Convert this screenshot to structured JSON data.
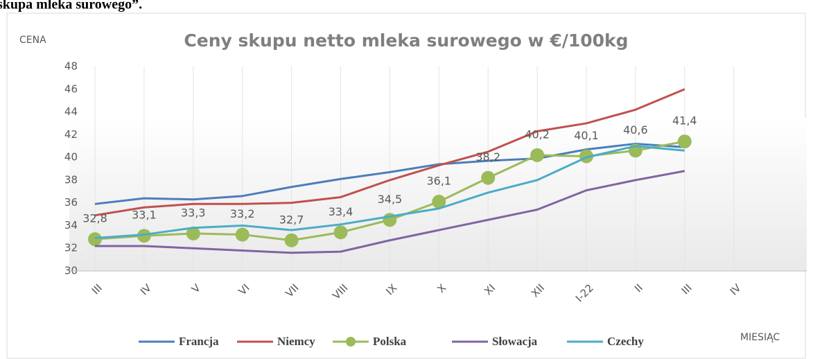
{
  "header": "skupa mleka surowego”.",
  "chart_data": {
    "type": "line",
    "title": "Ceny skupu netto mleka surowego  w €/100kg",
    "y_label": "CENA",
    "x_label": "MIESIĄC",
    "categories": [
      "III",
      "IV",
      "V",
      "VI",
      "VII",
      "VIII",
      "IX",
      "X",
      "XI",
      "XII",
      "I-22",
      "II",
      "III",
      "IV"
    ],
    "ylim": [
      30,
      48
    ],
    "yticks": [
      30,
      32,
      34,
      36,
      38,
      40,
      42,
      44,
      46,
      48
    ],
    "series": [
      {
        "name": "Francja",
        "color": "#4a7ebb",
        "values": [
          35.9,
          36.4,
          36.3,
          36.6,
          37.4,
          38.1,
          38.7,
          39.4,
          39.7,
          39.9,
          40.7,
          41.2,
          40.9,
          null
        ]
      },
      {
        "name": "Niemcy",
        "color": "#c0504d",
        "values": [
          34.9,
          35.6,
          35.9,
          35.9,
          36.0,
          36.5,
          38.0,
          39.3,
          40.5,
          42.3,
          43.0,
          44.2,
          46.0,
          null
        ]
      },
      {
        "name": "Polska",
        "color": "#9bbb59",
        "markers": true,
        "values": [
          32.8,
          33.1,
          33.3,
          33.2,
          32.7,
          33.4,
          34.5,
          36.1,
          38.2,
          40.2,
          40.1,
          40.6,
          41.4,
          null
        ],
        "value_labels": [
          "32,8",
          "33,1",
          "33,3",
          "33,2",
          "32,7",
          "33,4",
          "34,5",
          "36,1",
          "38,2",
          "40,2",
          "40,1",
          "40,6",
          "41,4",
          null
        ]
      },
      {
        "name": "Słowacja",
        "color": "#8064a2",
        "values": [
          32.2,
          32.2,
          32.0,
          31.8,
          31.6,
          31.7,
          32.7,
          33.6,
          34.5,
          35.4,
          37.1,
          38.0,
          38.8,
          null
        ]
      },
      {
        "name": "Czechy",
        "color": "#4bacc6",
        "values": [
          32.9,
          33.2,
          33.8,
          34.0,
          33.6,
          34.1,
          34.8,
          35.5,
          36.9,
          38.0,
          40.0,
          41.0,
          40.6,
          null
        ]
      }
    ]
  }
}
